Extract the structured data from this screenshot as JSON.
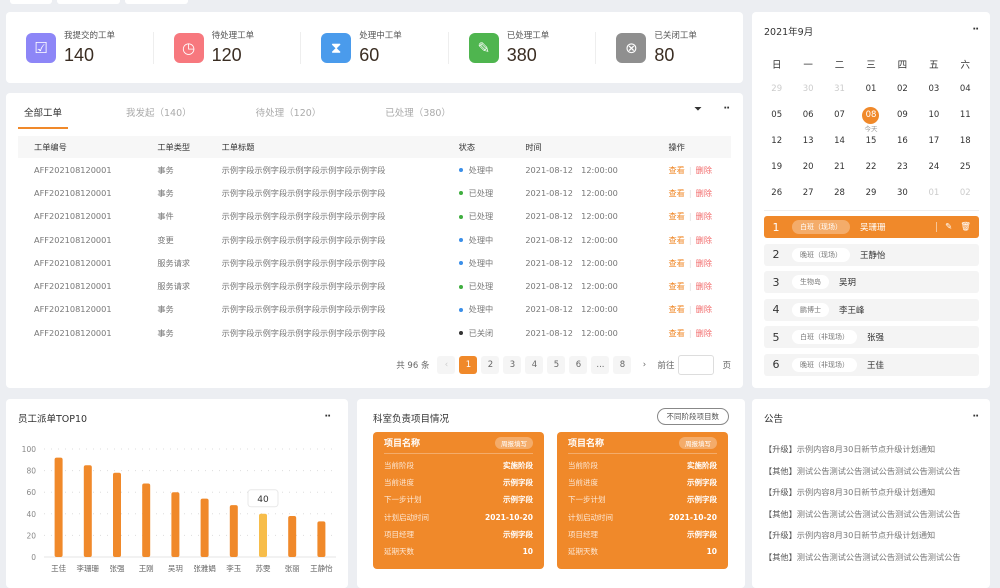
{
  "stats": [
    {
      "label": "我提交的工单",
      "value": "140",
      "icon": "inbox-icon",
      "color": "#8d86f7"
    },
    {
      "label": "待处理工单",
      "value": "120",
      "icon": "clock-icon",
      "color": "#f7787e"
    },
    {
      "label": "处理中工单",
      "value": "60",
      "icon": "hourglass-icon",
      "color": "#4a9bec"
    },
    {
      "label": "已处理工单",
      "value": "380",
      "icon": "checklist-icon",
      "color": "#4fb54f"
    },
    {
      "label": "已关闭工单",
      "value": "80",
      "icon": "close-circle-icon",
      "color": "#8f8f8f"
    }
  ],
  "tabs": [
    "全部工单",
    "我发起（140）",
    "待处理（120）",
    "已处理（380）"
  ],
  "table": {
    "headers": [
      "工单编号",
      "工单类型",
      "工单标题",
      "状态",
      "时间",
      "操作"
    ],
    "rows": [
      [
        "AFF202108120001",
        "事务",
        "示例字段示例字段示例字段示例字段示例字段",
        "处理中",
        "2021-08-12　12:00:00"
      ],
      [
        "AFF202108120001",
        "事务",
        "示例字段示例字段示例字段示例字段示例字段",
        "已处理",
        "2021-08-12　12:00:00"
      ],
      [
        "AFF202108120001",
        "事件",
        "示例字段示例字段示例字段示例字段示例字段",
        "已处理",
        "2021-08-12　12:00:00"
      ],
      [
        "AFF202108120001",
        "变更",
        "示例字段示例字段示例字段示例字段示例字段",
        "处理中",
        "2021-08-12　12:00:00"
      ],
      [
        "AFF202108120001",
        "服务请求",
        "示例字段示例字段示例字段示例字段示例字段",
        "处理中",
        "2021-08-12　12:00:00"
      ],
      [
        "AFF202108120001",
        "服务请求",
        "示例字段示例字段示例字段示例字段示例字段",
        "已处理",
        "2021-08-12　12:00:00"
      ],
      [
        "AFF202108120001",
        "事务",
        "示例字段示例字段示例字段示例字段示例字段",
        "处理中",
        "2021-08-12　12:00:00"
      ],
      [
        "AFF202108120001",
        "事务",
        "示例字段示例字段示例字段示例字段示例字段",
        "已关闭",
        "2021-08-12　12:00:00"
      ]
    ],
    "view": "查看",
    "delete": "删除",
    "status_colors": {
      "处理中": "#3b8fe8",
      "已处理": "#3fae3f",
      "已关闭": "#333333"
    }
  },
  "pager": {
    "total": "共 96 条",
    "pages": [
      "1",
      "2",
      "3",
      "4",
      "5",
      "6",
      "...",
      "8"
    ],
    "current": "1",
    "goto": "前往",
    "page_unit": "页"
  },
  "calendar": {
    "title": "2021年9月",
    "weekdays": [
      "日",
      "一",
      "二",
      "三",
      "四",
      "五",
      "六"
    ],
    "days": [
      "29",
      "30",
      "31",
      "01",
      "02",
      "03",
      "04",
      "05",
      "06",
      "07",
      "08",
      "09",
      "10",
      "11",
      "12",
      "13",
      "14",
      "15",
      "16",
      "17",
      "18",
      "19",
      "20",
      "21",
      "22",
      "23",
      "24",
      "25",
      "26",
      "27",
      "28",
      "29",
      "30",
      "01",
      "02"
    ],
    "today": "08",
    "today_label": "今天"
  },
  "schedule": [
    {
      "num": "1",
      "tag": "白班（现场）",
      "name": "吴珊珊",
      "active": true
    },
    {
      "num": "2",
      "tag": "晚班（现场）",
      "name": "王静怡"
    },
    {
      "num": "3",
      "tag": "生物岛",
      "name": "吴玥"
    },
    {
      "num": "4",
      "tag": "鹏博士",
      "name": "李王峰"
    },
    {
      "num": "5",
      "tag": "白班（非现场）",
      "name": "张强"
    },
    {
      "num": "6",
      "tag": "晚班（非现场）",
      "name": "王佳"
    }
  ],
  "chart_data": {
    "type": "bar",
    "title": "员工派单TOP10",
    "categories": [
      "王佳",
      "李珊珊",
      "张强",
      "王刚",
      "吴玥",
      "张雅娟",
      "李玉",
      "苏雯",
      "张丽",
      "王静怡"
    ],
    "values": [
      92,
      85,
      78,
      68,
      60,
      54,
      48,
      40,
      38,
      33
    ],
    "ylim": [
      0,
      100
    ],
    "yticks": [
      0,
      20,
      40,
      60,
      80,
      100
    ],
    "grid": true,
    "highlight": {
      "index": 7,
      "label": "40",
      "color": "#f7bd4a"
    },
    "color": "#f0892a"
  },
  "projects": {
    "title": "科室负责项目情况",
    "button": "不同阶段项目数",
    "cards": [
      {
        "name": "项目名称",
        "badge": "周报填写",
        "rows": [
          [
            "当前阶段",
            "实施阶段"
          ],
          [
            "当前进度",
            "示例字段"
          ],
          [
            "下一步计划",
            "示例字段"
          ],
          [
            "计划启动时间",
            "2021-10-20"
          ],
          [
            "项目经理",
            "示例字段"
          ],
          [
            "延期天数",
            "10"
          ]
        ]
      },
      {
        "name": "项目名称",
        "badge": "周报填写",
        "rows": [
          [
            "当前阶段",
            "实施阶段"
          ],
          [
            "当前进度",
            "示例字段"
          ],
          [
            "下一步计划",
            "示例字段"
          ],
          [
            "计划启动时间",
            "2021-10-20"
          ],
          [
            "项目经理",
            "示例字段"
          ],
          [
            "延期天数",
            "10"
          ]
        ]
      }
    ]
  },
  "notice": {
    "title": "公告",
    "items": [
      {
        "tag": "【升级】",
        "text": "示例内容8月30日新节点升级计划通知"
      },
      {
        "tag": "【其他】",
        "text": "测试公告测试公告测试公告测试公告测试公告"
      },
      {
        "tag": "【升级】",
        "text": "示例内容8月30日新节点升级计划通知"
      },
      {
        "tag": "【其他】",
        "text": "测试公告测试公告测试公告测试公告测试公告"
      },
      {
        "tag": "【升级】",
        "text": "示例内容8月30日新节点升级计划通知"
      },
      {
        "tag": "【其他】",
        "text": "测试公告测试公告测试公告测试公告测试公告"
      }
    ]
  }
}
